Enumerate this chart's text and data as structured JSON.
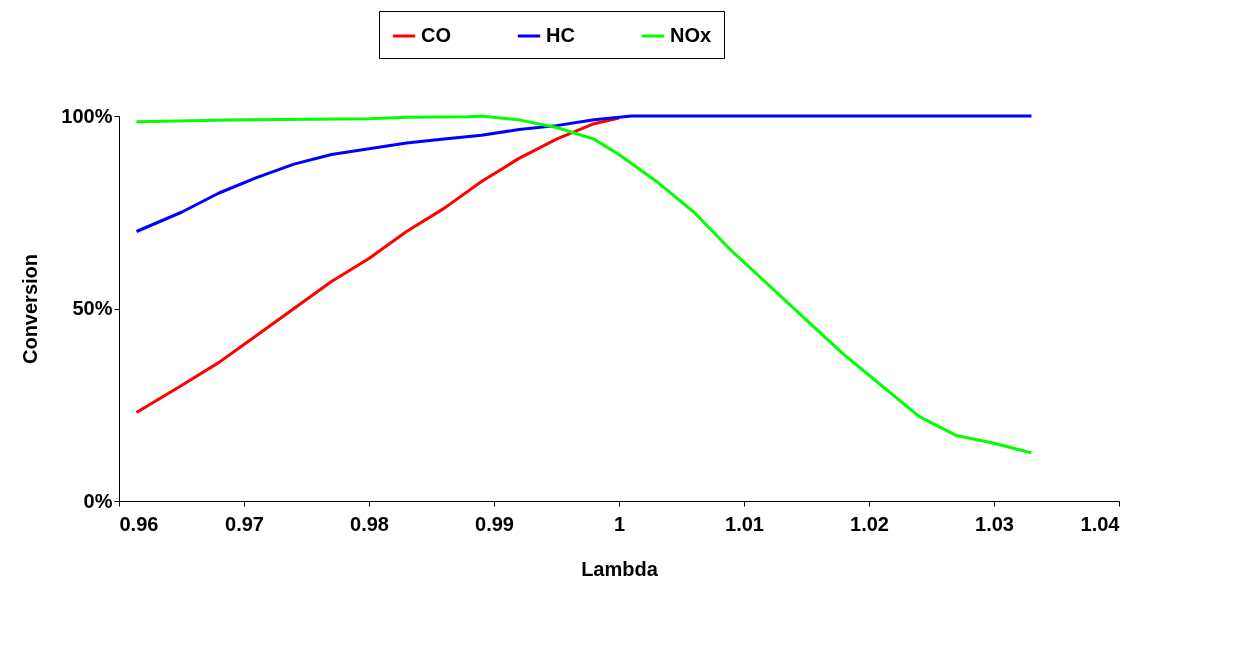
{
  "chart_data": {
    "type": "line",
    "xlabel": "Lambda",
    "ylabel": "Conversion",
    "xlim": [
      0.96,
      1.04
    ],
    "xticks": [
      0.96,
      0.97,
      0.98,
      0.99,
      1,
      1.01,
      1.02,
      1.03,
      1.04
    ],
    "ylim": [
      0,
      100
    ],
    "yticks": [
      {
        "value": 0,
        "label": "0%"
      },
      {
        "value": 50,
        "label": "50%"
      },
      {
        "value": 100,
        "label": "100%"
      }
    ],
    "grid": false,
    "legend": "top",
    "marker": "none",
    "line_style": "solid",
    "series": [
      {
        "name": "CO",
        "color": "#ff0000",
        "x": [
          0.9614,
          0.965,
          0.968,
          0.971,
          0.974,
          0.977,
          0.98,
          0.983,
          0.986,
          0.989,
          0.992,
          0.995,
          0.998,
          1.0
        ],
        "values": [
          23,
          30,
          36,
          43,
          50,
          57,
          63,
          70,
          76,
          83,
          89,
          94,
          98,
          99.5
        ]
      },
      {
        "name": "HC",
        "color": "#0000ff",
        "x": [
          0.9614,
          0.965,
          0.968,
          0.971,
          0.974,
          0.977,
          0.98,
          0.983,
          0.986,
          0.989,
          0.992,
          0.995,
          0.998,
          1.001,
          1.033
        ],
        "values": [
          70,
          75,
          80,
          84,
          87.5,
          90,
          91.5,
          93,
          94,
          95,
          96.5,
          97.5,
          99,
          100,
          100
        ]
      },
      {
        "name": "NOx",
        "color": "#00ff00",
        "x": [
          0.9614,
          0.97,
          0.98,
          0.983,
          0.988,
          0.989,
          0.992,
          0.995,
          0.998,
          1.0,
          1.003,
          1.006,
          1.009,
          1.012,
          1.015,
          1.018,
          1.021,
          1.024,
          1.027,
          1.03,
          1.033
        ],
        "values": [
          98.5,
          99,
          99.3,
          99.7,
          99.8,
          100,
          99,
          97,
          94,
          90,
          83,
          75,
          65,
          56,
          47,
          38,
          30,
          22,
          17,
          15,
          12.5
        ]
      }
    ]
  }
}
